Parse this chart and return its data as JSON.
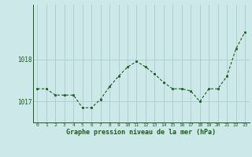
{
  "x": [
    0,
    1,
    2,
    3,
    4,
    5,
    6,
    7,
    8,
    9,
    10,
    11,
    12,
    13,
    14,
    15,
    16,
    17,
    18,
    19,
    20,
    21,
    22,
    23
  ],
  "y": [
    1017.3,
    1017.3,
    1017.15,
    1017.15,
    1017.15,
    1016.85,
    1016.85,
    1017.05,
    1017.35,
    1017.6,
    1017.82,
    1017.95,
    1017.82,
    1017.65,
    1017.45,
    1017.3,
    1017.3,
    1017.25,
    1017.0,
    1017.3,
    1017.3,
    1017.6,
    1018.25,
    1018.65
  ],
  "ylim": [
    1016.5,
    1019.3
  ],
  "yticks": [
    1017,
    1018
  ],
  "xticks": [
    0,
    1,
    2,
    3,
    4,
    5,
    6,
    7,
    8,
    9,
    10,
    11,
    12,
    13,
    14,
    15,
    16,
    17,
    18,
    19,
    20,
    21,
    22,
    23
  ],
  "xlabel": "Graphe pression niveau de la mer (hPa)",
  "line_color": "#1a5c1a",
  "marker_color": "#1a5c1a",
  "bg_color": "#cce8e8",
  "grid_color": "#aacccc",
  "tick_color": "#1a5c1a",
  "label_color": "#1a5c1a"
}
